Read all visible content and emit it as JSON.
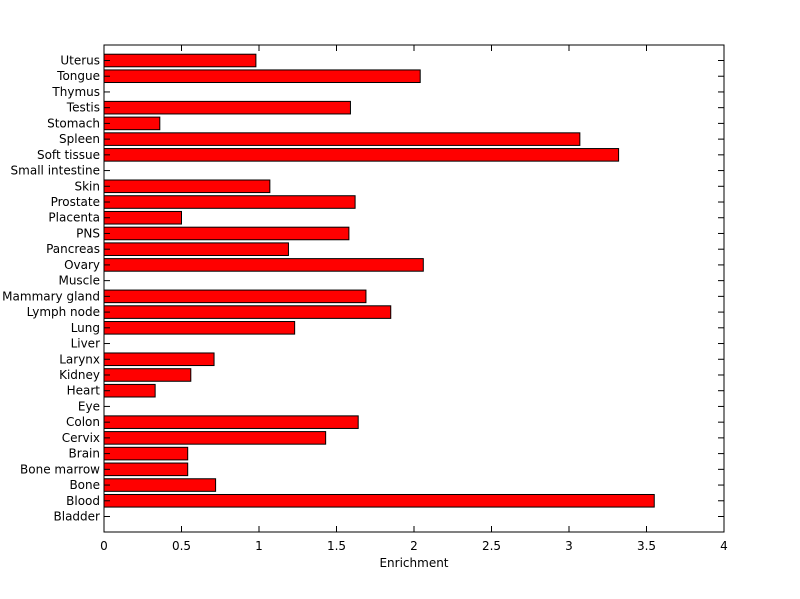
{
  "chart_data": {
    "type": "bar",
    "orientation": "horizontal",
    "xlabel": "Enrichment",
    "ylabel": "",
    "title": "",
    "xlim": [
      0,
      4
    ],
    "xticks": [
      0,
      0.5,
      1,
      1.5,
      2,
      2.5,
      3,
      3.5,
      4
    ],
    "xtick_labels": [
      "0",
      "0.5",
      "1",
      "1.5",
      "2",
      "2.5",
      "3",
      "3.5",
      "4"
    ],
    "grid": false,
    "bar_color": "#ff0000",
    "bar_edge_color": "#000000",
    "categories": [
      "Bladder",
      "Blood",
      "Bone",
      "Bone marrow",
      "Brain",
      "Cervix",
      "Colon",
      "Eye",
      "Heart",
      "Kidney",
      "Larynx",
      "Liver",
      "Lung",
      "Lymph node",
      "Mammary gland",
      "Muscle",
      "Ovary",
      "Pancreas",
      "PNS",
      "Placenta",
      "Prostate",
      "Skin",
      "Small intestine",
      "Soft tissue",
      "Spleen",
      "Stomach",
      "Testis",
      "Thymus",
      "Tongue",
      "Uterus"
    ],
    "values": [
      0,
      3.55,
      0.72,
      0.54,
      0.54,
      1.43,
      1.64,
      0,
      0.33,
      0.56,
      0.71,
      0,
      1.23,
      1.85,
      1.69,
      0,
      2.06,
      1.19,
      1.58,
      0.5,
      1.62,
      1.07,
      0,
      3.32,
      3.07,
      0.36,
      1.59,
      0,
      2.04,
      0.98
    ]
  }
}
